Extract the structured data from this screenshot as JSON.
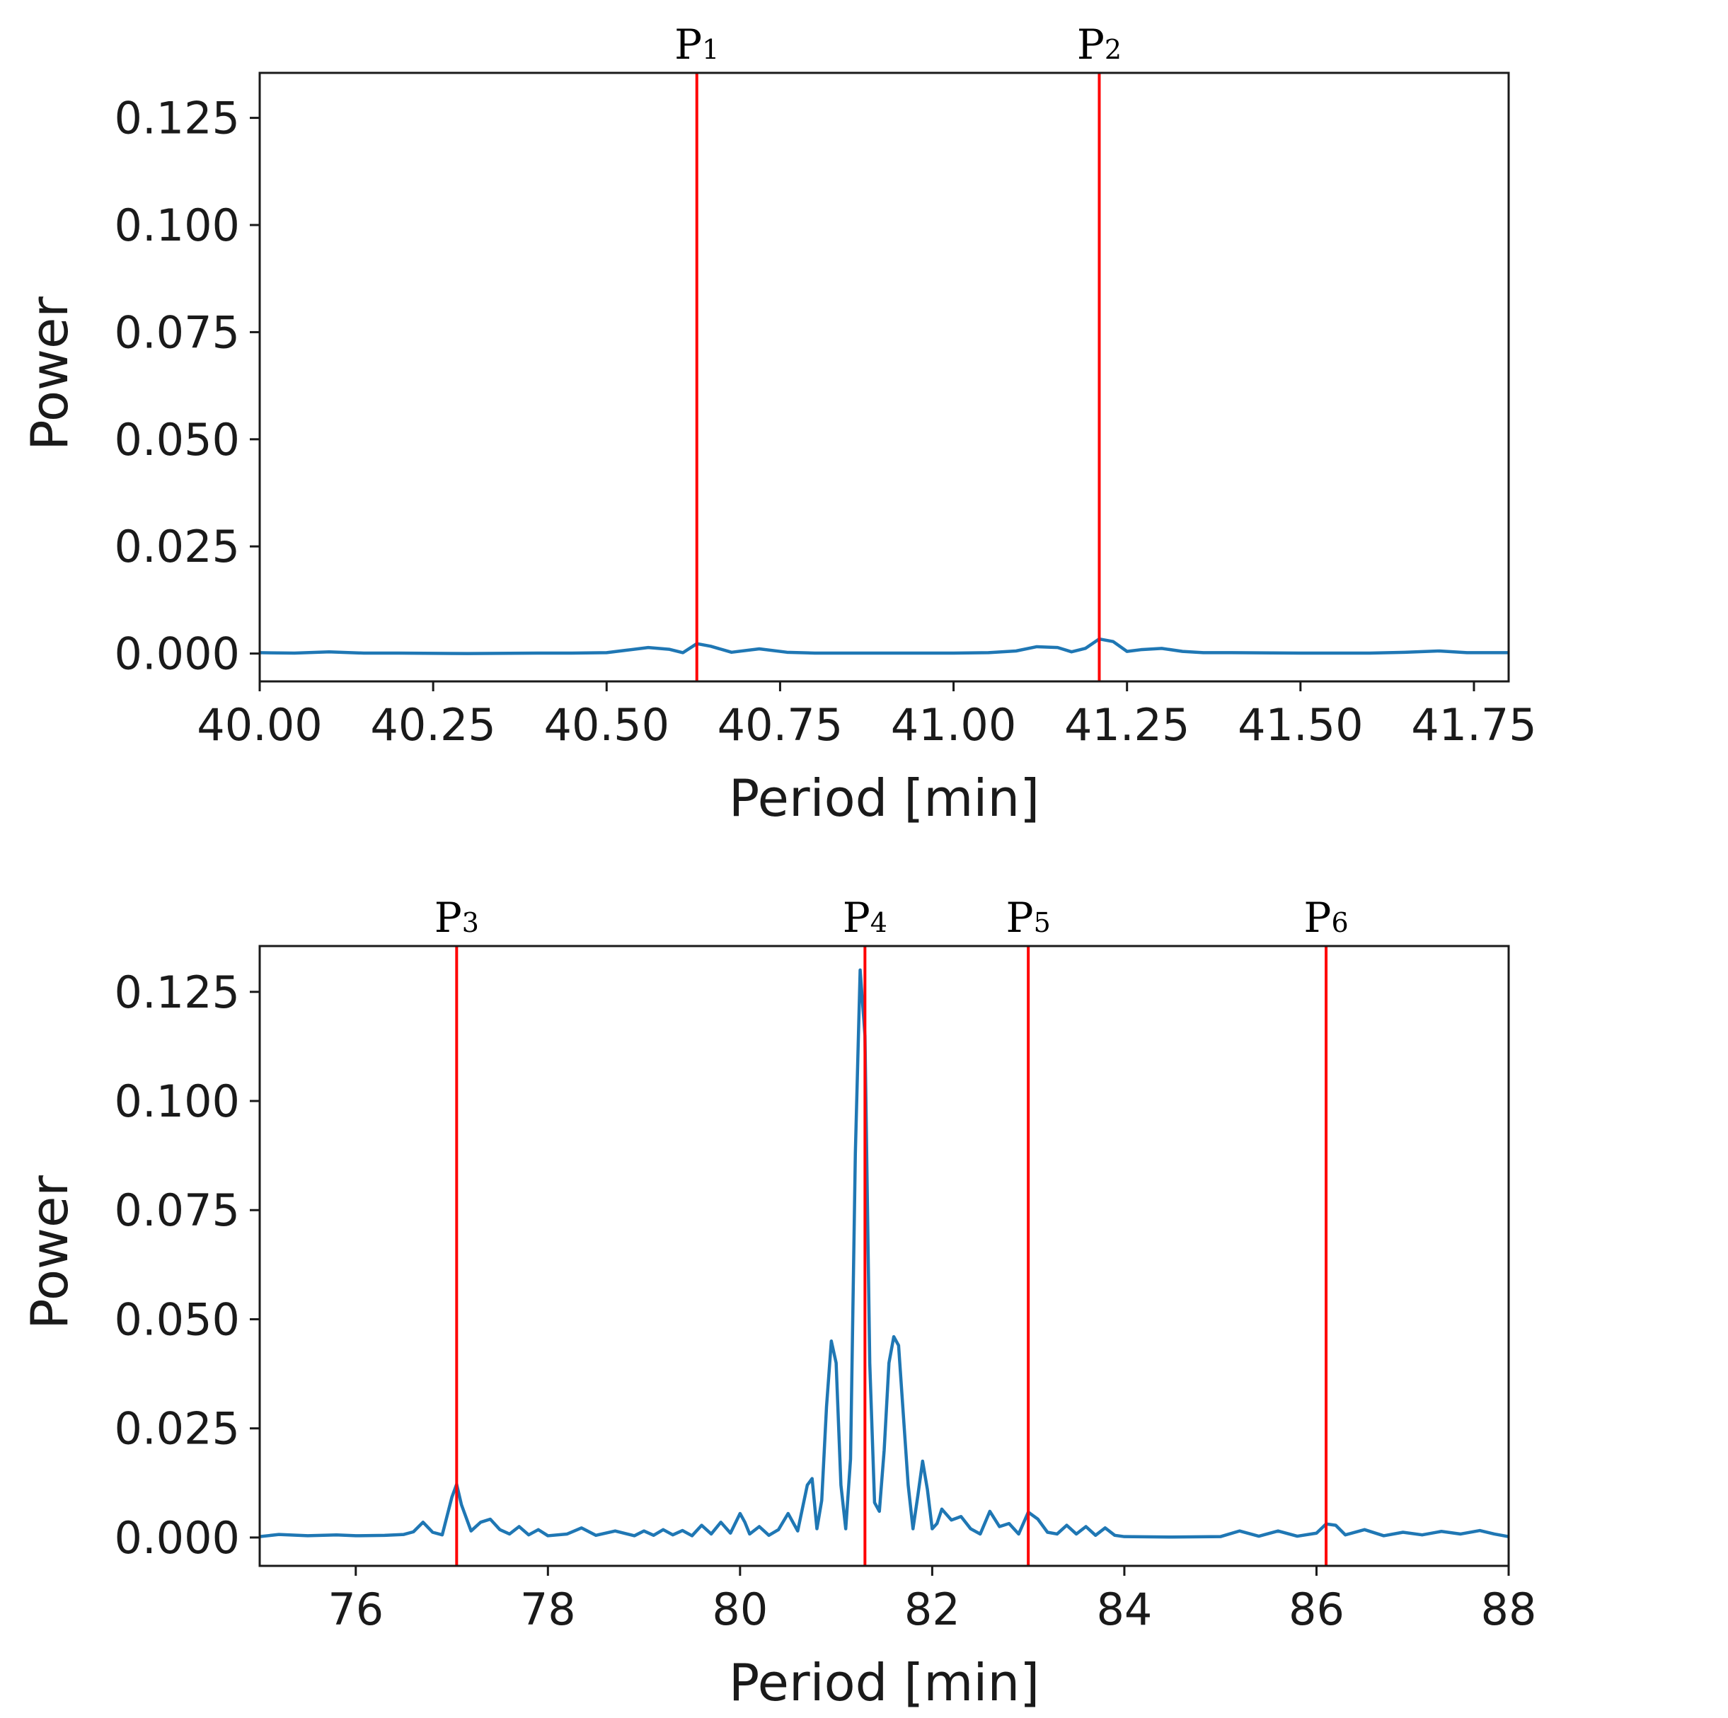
{
  "chart_data": [
    {
      "type": "line",
      "xlabel": "Period [min]",
      "ylabel": "Power",
      "xlim": [
        40.0,
        41.8
      ],
      "ylim": [
        -0.0065,
        0.1355
      ],
      "xticks": [
        "40.00",
        "40.25",
        "40.50",
        "40.75",
        "41.00",
        "41.25",
        "41.50",
        "41.75"
      ],
      "xtick_values": [
        40.0,
        40.25,
        40.5,
        40.75,
        41.0,
        41.25,
        41.5,
        41.75
      ],
      "yticks": [
        "0.000",
        "0.025",
        "0.050",
        "0.075",
        "0.100",
        "0.125"
      ],
      "ytick_values": [
        0.0,
        0.025,
        0.05,
        0.075,
        0.1,
        0.125
      ],
      "grid": false,
      "line_color": "#1f77b4",
      "marker_color": "#ff0000",
      "markers": [
        {
          "label": "P",
          "sub": "1",
          "x": 40.63
        },
        {
          "label": "P",
          "sub": "2",
          "x": 41.21
        }
      ],
      "series": [
        {
          "x": [
            40.0,
            40.05,
            40.1,
            40.15,
            40.2,
            40.3,
            40.4,
            40.45,
            40.5,
            40.53,
            40.56,
            40.59,
            40.61,
            40.63,
            40.65,
            40.68,
            40.72,
            40.76,
            40.8,
            40.9,
            41.0,
            41.05,
            41.09,
            41.12,
            41.15,
            41.17,
            41.19,
            41.21,
            41.23,
            41.25,
            41.27,
            41.3,
            41.33,
            41.36,
            41.4,
            41.5,
            41.6,
            41.65,
            41.7,
            41.74,
            41.8
          ],
          "y": [
            0.0002,
            0.0001,
            0.0004,
            0.0001,
            0.0001,
            0.0,
            0.0001,
            0.0001,
            0.0002,
            0.0008,
            0.0014,
            0.001,
            0.0002,
            0.0023,
            0.0017,
            0.0003,
            0.0011,
            0.0003,
            0.0001,
            0.0001,
            0.0001,
            0.0002,
            0.0006,
            0.0016,
            0.0014,
            0.0004,
            0.0012,
            0.0034,
            0.0028,
            0.0005,
            0.0009,
            0.0012,
            0.0005,
            0.0002,
            0.0002,
            0.0001,
            0.0001,
            0.0003,
            0.0006,
            0.0002,
            0.0002
          ]
        }
      ]
    },
    {
      "type": "line",
      "xlabel": "Period [min]",
      "ylabel": "Power",
      "xlim": [
        75.0,
        88.0
      ],
      "ylim": [
        -0.0065,
        0.1355
      ],
      "xticks": [
        "76",
        "78",
        "80",
        "82",
        "84",
        "86",
        "88"
      ],
      "xtick_values": [
        76,
        78,
        80,
        82,
        84,
        86,
        88
      ],
      "yticks": [
        "0.000",
        "0.025",
        "0.050",
        "0.075",
        "0.100",
        "0.125"
      ],
      "ytick_values": [
        0.0,
        0.025,
        0.05,
        0.075,
        0.1,
        0.125
      ],
      "grid": false,
      "line_color": "#1f77b4",
      "marker_color": "#ff0000",
      "markers": [
        {
          "label": "P",
          "sub": "3",
          "x": 77.05
        },
        {
          "label": "P",
          "sub": "4",
          "x": 81.3
        },
        {
          "label": "P",
          "sub": "5",
          "x": 83.0
        },
        {
          "label": "P",
          "sub": "6",
          "x": 86.1
        }
      ],
      "series": [
        {
          "x": [
            75.0,
            75.2,
            75.5,
            75.8,
            76.0,
            76.3,
            76.5,
            76.6,
            76.7,
            76.8,
            76.9,
            77.0,
            77.05,
            77.1,
            77.2,
            77.3,
            77.4,
            77.5,
            77.6,
            77.7,
            77.8,
            77.9,
            78.0,
            78.2,
            78.35,
            78.5,
            78.7,
            78.9,
            79.0,
            79.1,
            79.2,
            79.3,
            79.4,
            79.5,
            79.6,
            79.7,
            79.8,
            79.9,
            80.0,
            80.05,
            80.1,
            80.2,
            80.3,
            80.4,
            80.5,
            80.6,
            80.7,
            80.75,
            80.8,
            80.85,
            80.9,
            80.95,
            81.0,
            81.05,
            81.1,
            81.15,
            81.2,
            81.25,
            81.3,
            81.35,
            81.4,
            81.45,
            81.5,
            81.55,
            81.6,
            81.65,
            81.7,
            81.75,
            81.8,
            81.85,
            81.9,
            81.95,
            82.0,
            82.05,
            82.1,
            82.2,
            82.3,
            82.4,
            82.5,
            82.6,
            82.7,
            82.8,
            82.9,
            83.0,
            83.1,
            83.2,
            83.3,
            83.4,
            83.5,
            83.6,
            83.7,
            83.8,
            83.9,
            84.0,
            84.5,
            85.0,
            85.2,
            85.4,
            85.6,
            85.8,
            86.0,
            86.1,
            86.2,
            86.3,
            86.5,
            86.7,
            86.9,
            87.1,
            87.3,
            87.5,
            87.7,
            87.85,
            88.0
          ],
          "y": [
            0.0002,
            0.0007,
            0.0004,
            0.0006,
            0.0004,
            0.0005,
            0.0007,
            0.0013,
            0.0035,
            0.0012,
            0.0006,
            0.0092,
            0.0122,
            0.0075,
            0.0015,
            0.0035,
            0.0042,
            0.0018,
            0.0008,
            0.0025,
            0.0006,
            0.0018,
            0.0004,
            0.0008,
            0.0022,
            0.0005,
            0.0015,
            0.0004,
            0.0015,
            0.0005,
            0.0018,
            0.0006,
            0.0016,
            0.0004,
            0.0028,
            0.0008,
            0.0035,
            0.001,
            0.0055,
            0.0035,
            0.0008,
            0.0025,
            0.0005,
            0.0018,
            0.0055,
            0.0015,
            0.012,
            0.0135,
            0.002,
            0.0085,
            0.03,
            0.045,
            0.04,
            0.012,
            0.002,
            0.018,
            0.088,
            0.13,
            0.115,
            0.04,
            0.008,
            0.006,
            0.02,
            0.04,
            0.046,
            0.044,
            0.028,
            0.012,
            0.002,
            0.0095,
            0.0175,
            0.011,
            0.002,
            0.0032,
            0.0065,
            0.004,
            0.0048,
            0.002,
            0.0008,
            0.006,
            0.0025,
            0.0032,
            0.0008,
            0.0058,
            0.0042,
            0.0012,
            0.0008,
            0.0028,
            0.0008,
            0.0025,
            0.0005,
            0.0022,
            0.0005,
            0.0002,
            0.0001,
            0.0002,
            0.0015,
            0.0003,
            0.0015,
            0.0003,
            0.001,
            0.0031,
            0.0028,
            0.0006,
            0.0018,
            0.0004,
            0.0012,
            0.0006,
            0.0014,
            0.0008,
            0.0016,
            0.0008,
            0.0002
          ]
        }
      ]
    }
  ]
}
